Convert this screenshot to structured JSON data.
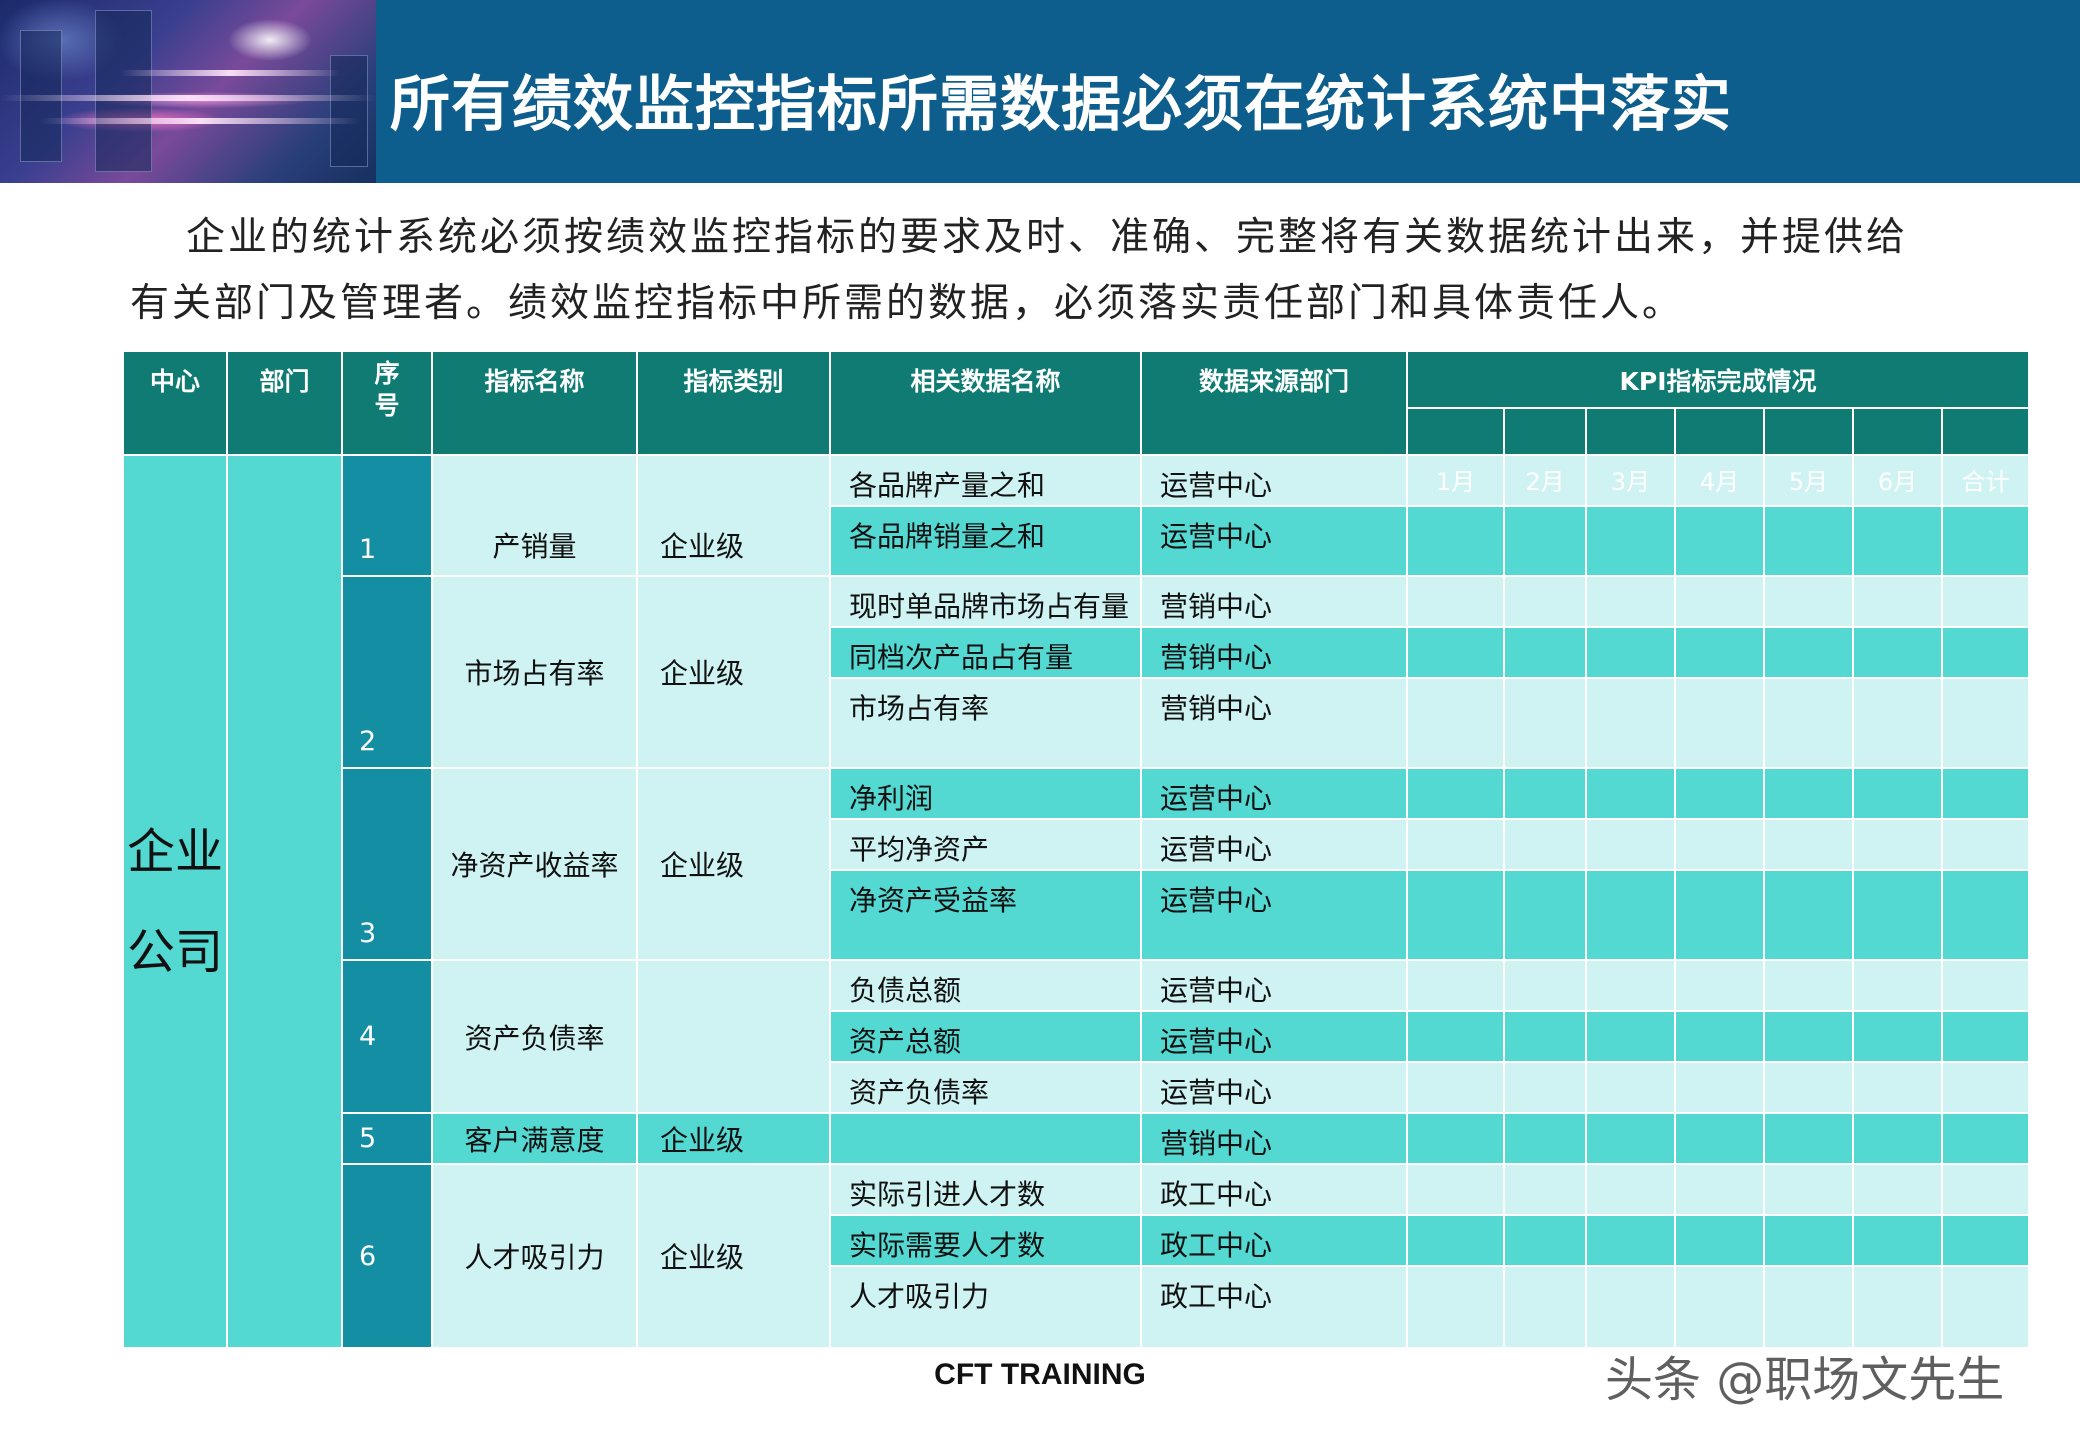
{
  "title": "所有绩效监控指标所需数据必须在统计系统中落实",
  "intro": {
    "line1": "企业的统计系统必须按绩效监控指标的要求及时、准确、完整将有关数据统计出来，并提供给",
    "line2": "有关部门及管理者。绩效监控指标中所需的数据，必须落实责任部门和具体责任人。"
  },
  "table": {
    "headers": {
      "center": "中心",
      "dept": "部门",
      "seq": "序\n号",
      "name": "指标名称",
      "type": "指标类别",
      "data_name": "相关数据名称",
      "source": "数据来源部门",
      "kpi": "KPI指标完成情况"
    },
    "month_labels": [
      "1月",
      "2月",
      "3月",
      "4月",
      "5月",
      "6月",
      "合计"
    ],
    "center_label": {
      "line1": "企业",
      "line2": "公司"
    },
    "groups": [
      {
        "seq": "1",
        "name": "产销量",
        "type": "企业级",
        "rows": [
          {
            "data": "各品牌产量之和",
            "source": "运营中心"
          },
          {
            "data": "各品牌销量之和",
            "source": "运营中心"
          }
        ]
      },
      {
        "seq": "2",
        "name": "市场占有率",
        "type": "企业级",
        "rows": [
          {
            "data": "现时单品牌市场占有量",
            "source": "营销中心"
          },
          {
            "data": "同档次产品占有量",
            "source": "营销中心"
          },
          {
            "data": "市场占有率",
            "source": "营销中心"
          }
        ]
      },
      {
        "seq": "3",
        "name": "净资产收益率",
        "type": "企业级",
        "rows": [
          {
            "data": "净利润",
            "source": "运营中心"
          },
          {
            "data": "平均净资产",
            "source": "运营中心"
          },
          {
            "data": "净资产受益率",
            "source": "运营中心"
          }
        ]
      },
      {
        "seq": "4",
        "name": "资产负债率",
        "type": "",
        "rows": [
          {
            "data": "负债总额",
            "source": "运营中心"
          },
          {
            "data": "资产总额",
            "source": "运营中心"
          },
          {
            "data": "资产负债率",
            "source": "运营中心"
          }
        ]
      },
      {
        "seq": "5",
        "name": "客户满意度",
        "type": "企业级",
        "rows": [
          {
            "data": "",
            "source": "营销中心"
          }
        ]
      },
      {
        "seq": "6",
        "name": "人才吸引力",
        "type": "企业级",
        "rows": [
          {
            "data": "实际引进人才数",
            "source": "政工中心"
          },
          {
            "data": "实际需要人才数",
            "source": "政工中心"
          },
          {
            "data": "人才吸引力",
            "source": "政工中心"
          }
        ]
      }
    ]
  },
  "footer": "CFT TRAINING",
  "watermark": "头条 @职场文先生"
}
